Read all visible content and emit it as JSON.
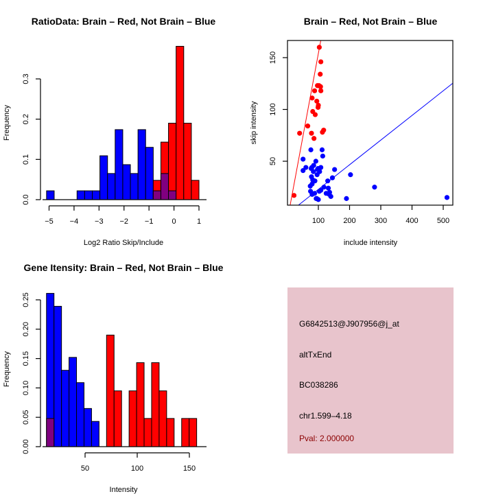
{
  "chart_data": [
    {
      "id": "ratio-hist",
      "type": "bar",
      "title": "RatioData: Brain – Red, Not Brain – Blue",
      "xlabel": "Log2 Ratio Skip/Include",
      "ylabel": "Frequency",
      "xlim": [
        -5.1,
        1.0
      ],
      "ylim": [
        0,
        0.38
      ],
      "xticks": [
        -5,
        -4,
        -3,
        -2,
        -1,
        0,
        1
      ],
      "xtick_labels": [
        "−5",
        "−4",
        "−3",
        "−2",
        "−1",
        "0",
        "1"
      ],
      "yticks": [
        0.0,
        0.1,
        0.2,
        0.3
      ],
      "ytick_labels": [
        "0.0",
        "0.1",
        "0.2",
        "0.3"
      ],
      "bin_width": 0.305,
      "series": [
        {
          "name": "Not Brain",
          "color": "#0000ff",
          "bins": [
            {
              "start": -5.1,
              "value": 0.022
            },
            {
              "start": -3.88,
              "value": 0.022
            },
            {
              "start": -3.575,
              "value": 0.022
            },
            {
              "start": -3.27,
              "value": 0.022
            },
            {
              "start": -2.965,
              "value": 0.109
            },
            {
              "start": -2.66,
              "value": 0.065
            },
            {
              "start": -2.355,
              "value": 0.174
            },
            {
              "start": -2.05,
              "value": 0.087
            },
            {
              "start": -1.745,
              "value": 0.065
            },
            {
              "start": -1.44,
              "value": 0.174
            },
            {
              "start": -1.135,
              "value": 0.13
            },
            {
              "start": -0.83,
              "value": 0.022
            },
            {
              "start": -0.525,
              "value": 0.065
            },
            {
              "start": -0.22,
              "value": 0.022
            }
          ]
        },
        {
          "name": "Brain",
          "color": "#ff0000",
          "bins": [
            {
              "start": -0.83,
              "value": 0.048
            },
            {
              "start": -0.525,
              "value": 0.143
            },
            {
              "start": -0.22,
              "value": 0.19
            },
            {
              "start": 0.085,
              "value": 0.381
            },
            {
              "start": 0.39,
              "value": 0.19
            },
            {
              "start": 0.695,
              "value": 0.048
            }
          ]
        }
      ],
      "overlap_color": "#800080"
    },
    {
      "id": "intensity-scatter",
      "type": "scatter",
      "title": "Brain – Red, Not Brain – Blue",
      "xlabel": "include intensity",
      "ylabel": "skip intensity",
      "xlim": [
        5,
        530
      ],
      "ylim": [
        8,
        166
      ],
      "xticks": [
        100,
        200,
        300,
        400,
        500
      ],
      "yticks": [
        50,
        100,
        150
      ],
      "series": [
        {
          "name": "Brain",
          "color": "#ff0000",
          "points": [
            [
              103,
              160
            ],
            [
              108,
              146
            ],
            [
              106,
              134
            ],
            [
              97,
              123
            ],
            [
              102,
              123
            ],
            [
              107,
              122
            ],
            [
              88,
              118
            ],
            [
              108,
              118
            ],
            [
              80,
              111
            ],
            [
              95,
              108
            ],
            [
              100,
              104
            ],
            [
              99,
              102
            ],
            [
              82,
              98
            ],
            [
              90,
              95
            ],
            [
              66,
              84
            ],
            [
              40,
              77
            ],
            [
              78,
              77
            ],
            [
              113,
              78
            ],
            [
              117,
              80
            ],
            [
              86,
              72
            ],
            [
              22,
              17
            ]
          ],
          "fit_line": {
            "slope": 1.62,
            "intercept": -8
          }
        },
        {
          "name": "Not Brain",
          "color": "#0000ff",
          "points": [
            [
              76,
              61
            ],
            [
              112,
              61
            ],
            [
              114,
              55
            ],
            [
              51,
              52
            ],
            [
              92,
              50
            ],
            [
              85,
              46
            ],
            [
              79,
              44
            ],
            [
              60,
              44
            ],
            [
              108,
              44
            ],
            [
              152,
              42
            ],
            [
              77,
              43
            ],
            [
              51,
              41
            ],
            [
              97,
              42
            ],
            [
              104,
              40
            ],
            [
              96,
              37
            ],
            [
              203,
              37
            ],
            [
              145,
              34
            ],
            [
              78,
              35
            ],
            [
              82,
              32
            ],
            [
              89,
              31
            ],
            [
              130,
              31
            ],
            [
              80,
              28
            ],
            [
              74,
              26
            ],
            [
              118,
              25
            ],
            [
              280,
              25
            ],
            [
              132,
              24
            ],
            [
              108,
              22
            ],
            [
              103,
              21
            ],
            [
              75,
              21
            ],
            [
              80,
              18
            ],
            [
              88,
              19
            ],
            [
              125,
              19
            ],
            [
              135,
              18
            ],
            [
              136,
              20
            ],
            [
              140,
              16
            ],
            [
              95,
              14
            ],
            [
              190,
              14
            ],
            [
              100,
              13
            ],
            [
              512,
              15
            ],
            [
              93,
              14
            ],
            [
              84,
              40
            ],
            [
              99,
              43
            ]
          ],
          "fit_line": {
            "slope": 0.238,
            "intercept": -1
          }
        }
      ]
    },
    {
      "id": "gene-intensity-hist",
      "type": "bar",
      "title": "Gene Itensity: Brain – Red, Not Brain – Blue",
      "xlabel": "Intensity",
      "ylabel": "Frequency",
      "xlim": [
        13,
        160
      ],
      "ylim": [
        0,
        0.26
      ],
      "xticks": [
        50,
        100,
        150
      ],
      "yticks": [
        0.0,
        0.05,
        0.1,
        0.15,
        0.2,
        0.25
      ],
      "ytick_labels": [
        "0.00",
        "0.05",
        "0.10",
        "0.15",
        "0.20",
        "0.25"
      ],
      "bin_width": 7.2,
      "series": [
        {
          "name": "Not Brain",
          "color": "#0000ff",
          "bins": [
            {
              "start": 13.0,
              "value": 0.261
            },
            {
              "start": 20.2,
              "value": 0.239
            },
            {
              "start": 27.4,
              "value": 0.13
            },
            {
              "start": 34.6,
              "value": 0.152
            },
            {
              "start": 41.8,
              "value": 0.109
            },
            {
              "start": 49.0,
              "value": 0.065
            },
            {
              "start": 56.2,
              "value": 0.043
            }
          ]
        },
        {
          "name": "Brain",
          "color": "#ff0000",
          "bins": [
            {
              "start": 13.0,
              "value": 0.048
            },
            {
              "start": 70.6,
              "value": 0.19
            },
            {
              "start": 77.8,
              "value": 0.095
            },
            {
              "start": 92.2,
              "value": 0.095
            },
            {
              "start": 99.4,
              "value": 0.143
            },
            {
              "start": 106.6,
              "value": 0.048
            },
            {
              "start": 113.8,
              "value": 0.143
            },
            {
              "start": 121.0,
              "value": 0.095
            },
            {
              "start": 128.2,
              "value": 0.048
            },
            {
              "start": 142.6,
              "value": 0.048
            },
            {
              "start": 149.8,
              "value": 0.048
            }
          ]
        }
      ],
      "overlap_color": "#800080"
    }
  ],
  "info_panel": {
    "background": "#e8c4cc",
    "lines": [
      "G6842513@J907956@j_at",
      "altTxEnd",
      "BC038286",
      "chr1.599–4.18"
    ],
    "pval": "Pval: 2.000000",
    "pval_color": "#8b0000"
  }
}
